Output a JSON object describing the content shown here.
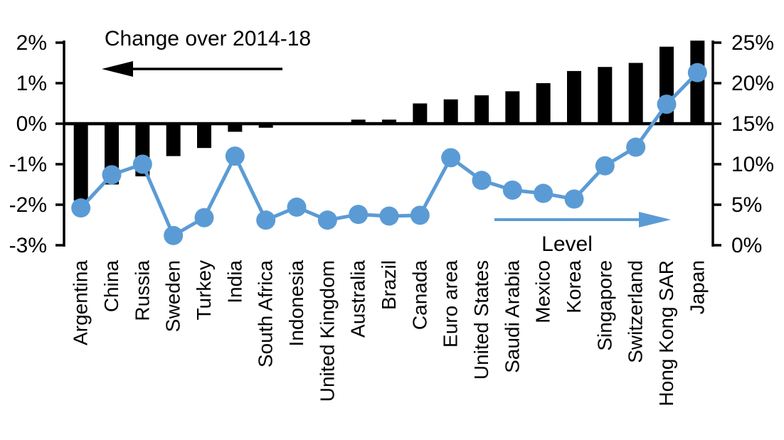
{
  "chart_data": {
    "type": "bar",
    "subtype": "bar-line-combo",
    "title": "",
    "grid": false,
    "legend_position": "none",
    "background": "#FFFFFF",
    "categories": [
      "Argentina",
      "China",
      "Russia",
      "Sweden",
      "Turkey",
      "India",
      "South Africa",
      "Indonesia",
      "United Kingdom",
      "Australia",
      "Brazil",
      "Canada",
      "Euro area",
      "United States",
      "Saudi Arabia",
      "Mexico",
      "Korea",
      "Singapore",
      "Switzerland",
      "Hong Kong SAR",
      "Japan"
    ],
    "series": [
      {
        "name": "Change over 2014-18",
        "type": "bar",
        "axis": "left",
        "color": "#000000",
        "values": [
          -1.9,
          -1.5,
          -1.3,
          -0.8,
          -0.6,
          -0.2,
          -0.1,
          0,
          0,
          0.1,
          0.1,
          0.5,
          0.6,
          0.7,
          0.8,
          1.0,
          1.3,
          1.4,
          1.5,
          1.9,
          2.05
        ]
      },
      {
        "name": "Level",
        "type": "line",
        "axis": "right",
        "color": "#5B9BD5",
        "values": [
          4.6,
          8.7,
          10.0,
          1.2,
          3.4,
          11.0,
          3.1,
          4.7,
          3.1,
          3.8,
          3.6,
          3.7,
          10.8,
          8.0,
          6.8,
          6.4,
          5.7,
          9.8,
          12.1,
          17.4,
          21.3
        ]
      }
    ],
    "left_axis": {
      "unit": "%",
      "range": [
        -3,
        2
      ],
      "tick_labels": [
        "2%",
        "1%",
        "0%",
        "-1%",
        "-2%",
        "-3%"
      ],
      "tick_values": [
        2,
        1,
        0,
        -1,
        -2,
        -3
      ]
    },
    "right_axis": {
      "unit": "%",
      "range": [
        0,
        25
      ],
      "tick_labels": [
        "25%",
        "20%",
        "15%",
        "10%",
        "5%",
        "0%"
      ],
      "tick_values": [
        25,
        20,
        15,
        10,
        5,
        0
      ]
    },
    "annotations": {
      "bar_series": {
        "text": "Change over 2014-18",
        "arrow_direction": "left",
        "color": "#000000"
      },
      "line_series": {
        "text": "Level",
        "arrow_direction": "right",
        "color": "#5B9BD5"
      }
    }
  }
}
